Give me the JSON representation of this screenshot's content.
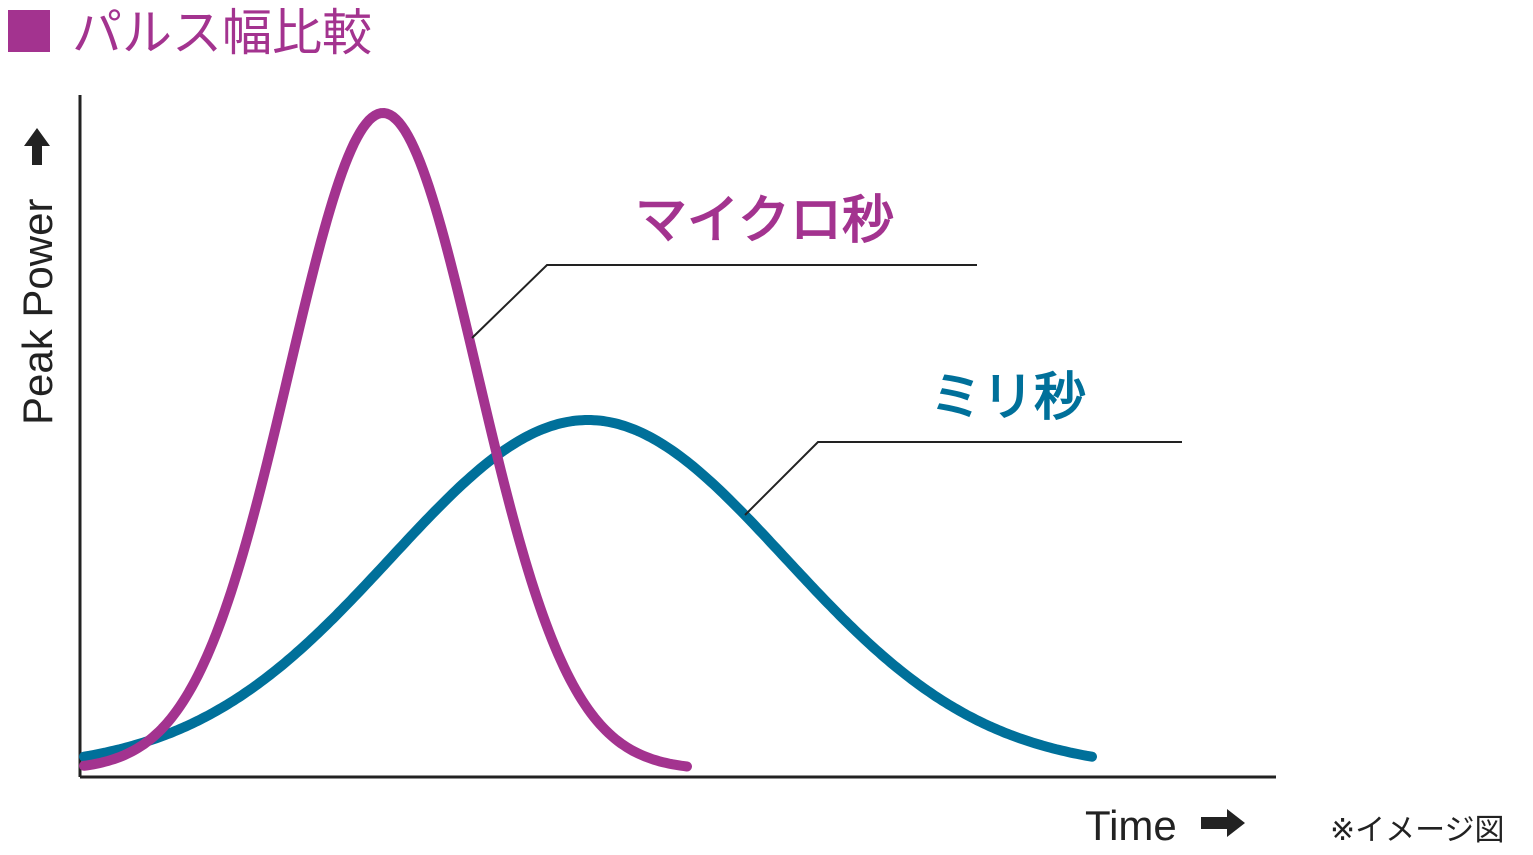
{
  "header": {
    "title": "パルス幅比較"
  },
  "axes": {
    "y_label": "Peak Power",
    "x_label": "Time"
  },
  "curves": [
    {
      "label": "マイクロ秒"
    },
    {
      "label": "ミリ秒"
    }
  ],
  "note": "※イメージ図"
}
